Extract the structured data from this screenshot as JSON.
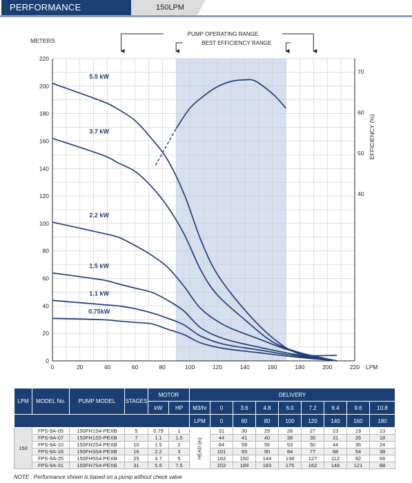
{
  "header": {
    "title": "PERFORMANCE",
    "subtitle": "150LPM"
  },
  "chart_data": {
    "type": "line",
    "ylabel": "METERS",
    "xlabel": "LPM",
    "y2label": "EFFICIENCY (%)",
    "xlim": [
      0,
      220
    ],
    "ylim": [
      0,
      220
    ],
    "x_ticks": [
      0,
      20,
      40,
      60,
      80,
      100,
      120,
      140,
      160,
      180,
      200,
      220
    ],
    "y_ticks": [
      0,
      20,
      40,
      60,
      80,
      100,
      120,
      140,
      160,
      180,
      200,
      220
    ],
    "y2_ticks": [
      40,
      50,
      60,
      70
    ],
    "y2lim": [
      30,
      72
    ],
    "grid": true,
    "ranges": {
      "operating": {
        "label": "PUMP OPERATING RANGE",
        "x": [
          50,
          190
        ]
      },
      "best_efficiency": {
        "label": "BEST EFFICIENCY RANGE",
        "x": [
          90,
          170
        ]
      }
    },
    "series": [
      {
        "name": "5.5 kW",
        "points": [
          [
            0,
            202
          ],
          [
            36,
            189
          ],
          [
            48,
            183
          ],
          [
            60,
            175
          ],
          [
            72,
            162
          ],
          [
            84,
            146
          ],
          [
            96,
            121
          ],
          [
            108,
            88
          ],
          [
            120,
            63
          ],
          [
            140,
            37
          ],
          [
            160,
            17
          ],
          [
            180,
            5
          ],
          [
            207,
            4
          ]
        ]
      },
      {
        "name": "3.7 kW",
        "points": [
          [
            0,
            162
          ],
          [
            36,
            150
          ],
          [
            48,
            144
          ],
          [
            60,
            138
          ],
          [
            72,
            127
          ],
          [
            84,
            112
          ],
          [
            96,
            92
          ],
          [
            108,
            66
          ],
          [
            120,
            48
          ],
          [
            140,
            30
          ],
          [
            160,
            14
          ],
          [
            180,
            6
          ],
          [
            207,
            0
          ]
        ]
      },
      {
        "name": "2.2 kW",
        "points": [
          [
            0,
            101
          ],
          [
            36,
            93
          ],
          [
            48,
            90
          ],
          [
            60,
            84
          ],
          [
            72,
            77
          ],
          [
            84,
            68
          ],
          [
            96,
            54
          ],
          [
            108,
            38
          ],
          [
            125,
            26
          ],
          [
            150,
            16
          ],
          [
            175,
            7
          ],
          [
            207,
            0
          ]
        ]
      },
      {
        "name": "1.5 kW",
        "points": [
          [
            0,
            64
          ],
          [
            36,
            59
          ],
          [
            48,
            56
          ],
          [
            60,
            53
          ],
          [
            72,
            50
          ],
          [
            84,
            44
          ],
          [
            96,
            36
          ],
          [
            108,
            24
          ],
          [
            125,
            16
          ],
          [
            150,
            10
          ],
          [
            175,
            5
          ],
          [
            207,
            0
          ]
        ]
      },
      {
        "name": "1.1 kW",
        "points": [
          [
            0,
            44
          ],
          [
            36,
            41
          ],
          [
            48,
            40
          ],
          [
            60,
            38
          ],
          [
            72,
            35
          ],
          [
            84,
            31
          ],
          [
            96,
            26
          ],
          [
            108,
            18
          ],
          [
            125,
            12
          ],
          [
            150,
            8
          ],
          [
            175,
            4
          ],
          [
            207,
            0
          ]
        ]
      },
      {
        "name": "0.75kW",
        "points": [
          [
            0,
            31
          ],
          [
            36,
            30
          ],
          [
            48,
            29
          ],
          [
            60,
            28
          ],
          [
            72,
            27
          ],
          [
            84,
            23
          ],
          [
            96,
            19
          ],
          [
            108,
            13
          ],
          [
            125,
            9
          ],
          [
            150,
            6
          ],
          [
            175,
            3
          ],
          [
            207,
            0
          ]
        ]
      }
    ],
    "efficiency_curve": {
      "points": [
        [
          75,
          47
        ],
        [
          90,
          56
        ],
        [
          100,
          61
        ],
        [
          110,
          64
        ],
        [
          120,
          66.3
        ],
        [
          130,
          67.6
        ],
        [
          140,
          68
        ],
        [
          147,
          67.8
        ],
        [
          155,
          66
        ],
        [
          162,
          64
        ],
        [
          170,
          61
        ]
      ]
    }
  },
  "table": {
    "group_headers": {
      "motor": "MOTOR",
      "delivery": "DELIVERY"
    },
    "col_headers": {
      "lpm": "LPM",
      "model": "MODEL No.",
      "pump_model": "PUMP MODEL",
      "stages": "STAGES",
      "kw": "kW",
      "hp": "HP"
    },
    "flow_units": {
      "m3": "M3/hr",
      "lpm": "LPM"
    },
    "m3_values": [
      "0",
      "3.6",
      "4.8",
      "6.0",
      "7.2",
      "8.4",
      "9.6",
      "10.8"
    ],
    "lpm_values": [
      "0",
      "60",
      "80",
      "100",
      "120",
      "140",
      "160",
      "180"
    ],
    "lpm_group": "150",
    "head_label": "HEAD (m)",
    "rows": [
      {
        "model": "FPS-9A-05",
        "pump": "150FH1S4-PEXB",
        "stages": "5",
        "kw": "0.75",
        "hp": "1",
        "head": [
          "31",
          "30",
          "29",
          "28",
          "27",
          "23",
          "19",
          "13"
        ]
      },
      {
        "model": "FPS-9A-07",
        "pump": "150FH1S5-PEXB",
        "stages": "7",
        "kw": "1.1",
        "hp": "1.5",
        "head": [
          "44",
          "41",
          "40",
          "38",
          "35",
          "31",
          "26",
          "18"
        ]
      },
      {
        "model": "FPS-9A-10",
        "pump": "150FH2S4-PEXB",
        "stages": "10",
        "kw": "1.5",
        "hp": "2",
        "head": [
          "64",
          "59",
          "56",
          "53",
          "50",
          "44",
          "36",
          "24"
        ]
      },
      {
        "model": "FPS-9A-16",
        "pump": "150FH3S4-PEXB",
        "stages": "16",
        "kw": "2.2",
        "hp": "3",
        "head": [
          "101",
          "93",
          "90",
          "84",
          "77",
          "68",
          "54",
          "38"
        ]
      },
      {
        "model": "FPS-9A-25",
        "pump": "150FH5S4-PEXB",
        "stages": "25",
        "kw": "3.7",
        "hp": "5",
        "head": [
          "162",
          "150",
          "144",
          "138",
          "127",
          "112",
          "92",
          "66"
        ]
      },
      {
        "model": "FPS-9A-31",
        "pump": "150FH7S4-PEXB",
        "stages": "31",
        "kw": "5.5",
        "hp": "7.5",
        "head": [
          "202",
          "189",
          "183",
          "175",
          "162",
          "146",
          "121",
          "88"
        ]
      }
    ]
  },
  "note": "NOTE : Performance shown is based on a pump without check valve"
}
